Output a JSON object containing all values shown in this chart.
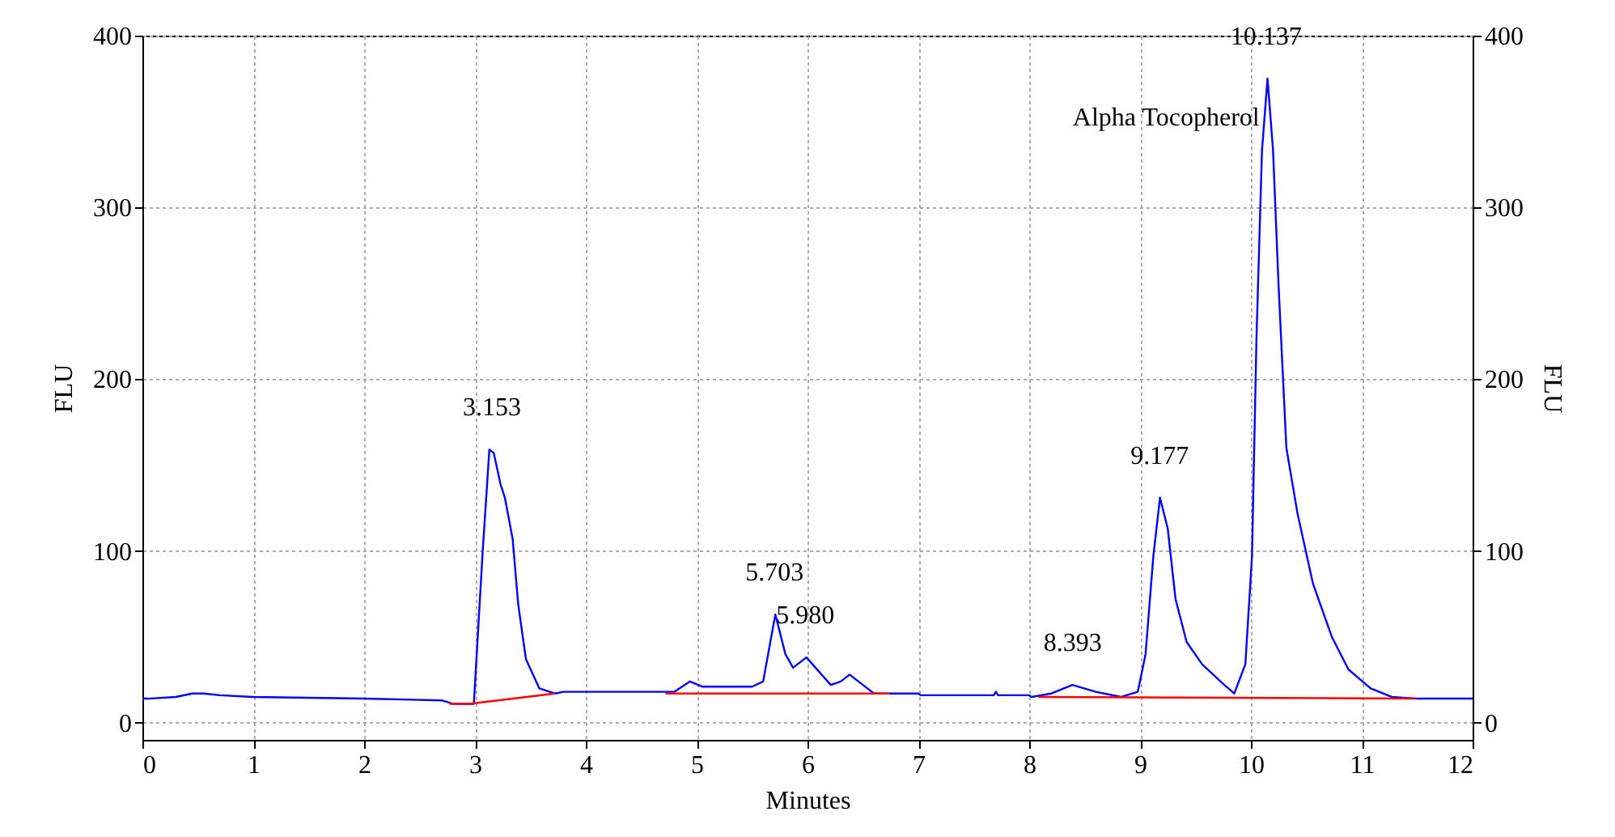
{
  "chart_data": {
    "type": "line",
    "xlabel": "Minutes",
    "ylabel": "FLU",
    "y2label": "FLU",
    "xlim": [
      0,
      12
    ],
    "xticks": [
      0,
      1,
      2,
      3,
      4,
      5,
      6,
      7,
      8,
      9,
      10,
      11,
      12
    ],
    "ylim": [
      -10,
      400
    ],
    "yticks": [
      0,
      100,
      200,
      300,
      400
    ],
    "y2lim": [
      -10,
      400
    ],
    "y2ticks": [
      0,
      100,
      200,
      300,
      400
    ],
    "grid": true,
    "line_style": "solid",
    "series": [
      {
        "color": "#0000ff",
        "x": [
          0,
          0.05,
          0.3,
          0.45,
          0.55,
          0.7,
          1.0,
          2.0,
          2.7,
          2.8,
          2.95,
          2.99,
          3.07,
          3.13,
          3.17,
          3.23,
          3.27,
          3.34,
          3.39,
          3.46,
          3.58,
          3.72,
          3.8,
          4.6,
          4.8,
          4.94,
          5.05,
          5.5,
          5.6,
          5.71,
          5.8,
          5.87,
          5.99,
          6.1,
          6.21,
          6.3,
          6.38,
          6.5,
          6.6,
          7.0,
          7.02,
          7.68,
          7.7,
          7.72,
          8.0,
          8.02,
          8.2,
          8.39,
          8.6,
          8.83,
          8.98,
          9.05,
          9.12,
          9.18,
          9.25,
          9.32,
          9.42,
          9.56,
          9.76,
          9.85,
          9.95,
          10.01,
          10.05,
          10.1,
          10.15,
          10.2,
          10.25,
          10.32,
          10.42,
          10.56,
          10.73,
          10.88,
          11.08,
          11.27,
          11.51,
          12
        ],
        "values": [
          14,
          14,
          15,
          17,
          17,
          16,
          15,
          14,
          13,
          11,
          11,
          11,
          100,
          159,
          157,
          139,
          131,
          107,
          69,
          37,
          20,
          17,
          18,
          18,
          18,
          24,
          21,
          21,
          24,
          63,
          40,
          32,
          38,
          30,
          22,
          24,
          28,
          22,
          17,
          17,
          16,
          16,
          18,
          16,
          16,
          15,
          17,
          22,
          18,
          15,
          18,
          40,
          97,
          131,
          113,
          72,
          47,
          34,
          22,
          17,
          34,
          97,
          223,
          333,
          375,
          333,
          254,
          160,
          122,
          81,
          50,
          31,
          20,
          15,
          14,
          14
        ]
      },
      {
        "color": "#ff0000",
        "axis": "y2",
        "x": [
          2.77,
          2.95,
          3.72,
          4.2,
          4.72,
          6.74,
          7.4,
          8.08,
          11.48
        ],
        "values": [
          11,
          11,
          17,
          null,
          17,
          17,
          null,
          15,
          14
        ]
      }
    ],
    "annotations": [
      {
        "text": "3.153",
        "x": 3.153,
        "y": 159
      },
      {
        "text": "5.703",
        "x": 5.703,
        "y": 63
      },
      {
        "text": "5.980",
        "x": 5.98,
        "y": 38
      },
      {
        "text": "8.393",
        "x": 8.393,
        "y": 22
      },
      {
        "text": "9.177",
        "x": 9.177,
        "y": 131
      },
      {
        "text": "10.137",
        "x": 10.137,
        "y": 375
      },
      {
        "text": "Alpha Tocopherol",
        "x": 10.137,
        "y": 375
      }
    ]
  }
}
